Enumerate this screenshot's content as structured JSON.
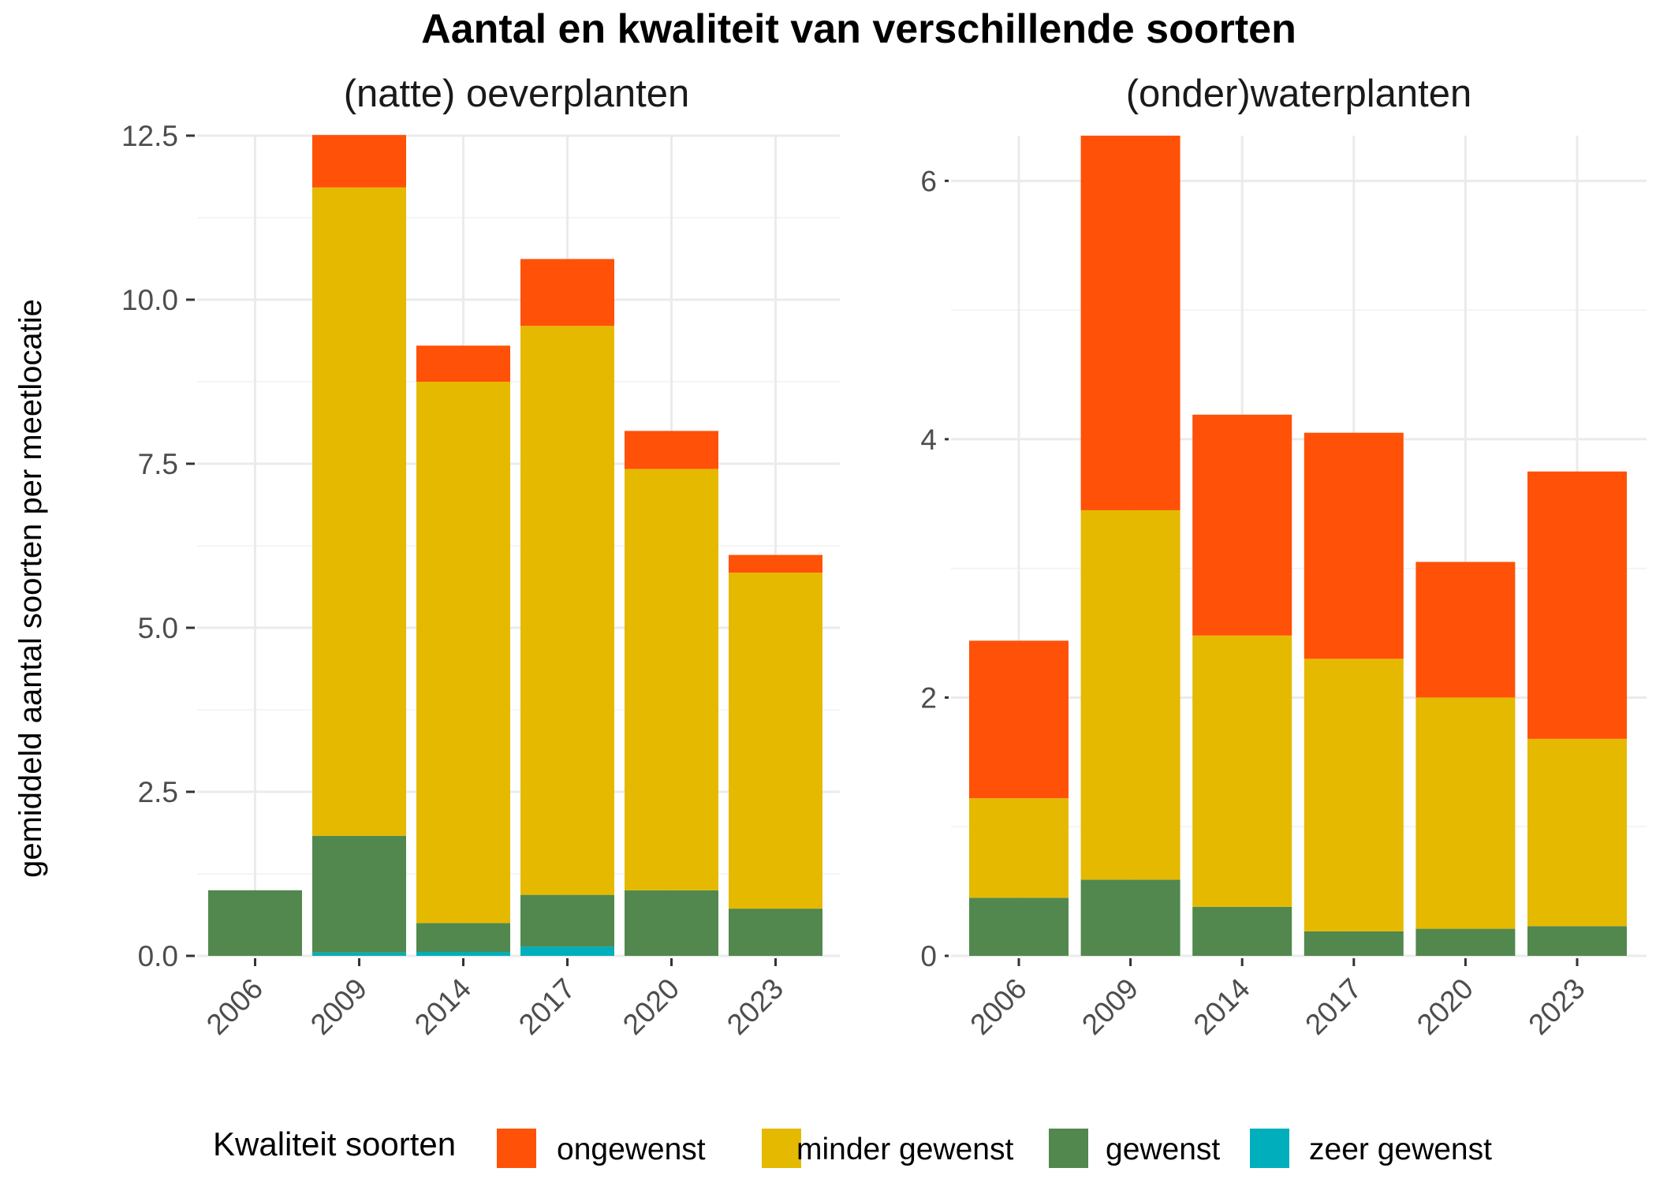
{
  "chart_data": {
    "type": "bar",
    "stacked": true,
    "title": "Aantal en kwaliteit van verschillende soorten",
    "ylabel": "gemiddeld aantal soorten per meetlocatie",
    "legend": {
      "title": "Kwaliteit soorten",
      "position": "bottom",
      "entries": [
        {
          "label": "ongewenst",
          "color": "#FF5108"
        },
        {
          "label": "minder gewenst",
          "color": "#E5B900"
        },
        {
          "label": "gewenst",
          "color": "#52884E"
        },
        {
          "label": "zeer gewenst",
          "color": "#00AFBB"
        }
      ]
    },
    "panels": [
      {
        "title": "(natte) oeverplanten",
        "categories": [
          "2006",
          "2009",
          "2014",
          "2017",
          "2020",
          "2023"
        ],
        "ylim": [
          0,
          12.5
        ],
        "yticks": [
          0,
          2.5,
          5,
          7.5,
          10,
          12.5
        ],
        "ytick_labels": [
          "0.0",
          "2.5",
          "5.0",
          "7.5",
          "10.0",
          "12.5"
        ],
        "grid": true,
        "series": [
          {
            "name": "zeer gewenst",
            "color": "#00AFBB",
            "values": [
              0,
              0.05,
              0.06,
              0.14,
              0,
              0
            ]
          },
          {
            "name": "gewenst",
            "color": "#52884E",
            "values": [
              1.0,
              1.78,
              0.44,
              0.79,
              1.0,
              0.72
            ]
          },
          {
            "name": "minder gewenst",
            "color": "#E5B900",
            "values": [
              0,
              9.88,
              8.25,
              8.67,
              6.42,
              5.12
            ]
          },
          {
            "name": "ongewenst",
            "color": "#FF5108",
            "values": [
              0,
              0.8,
              0.55,
              1.02,
              0.58,
              0.27
            ]
          }
        ]
      },
      {
        "title": "(onder)waterplanten",
        "categories": [
          "2006",
          "2009",
          "2014",
          "2017",
          "2020",
          "2023"
        ],
        "ylim": [
          0,
          6.35
        ],
        "yticks": [
          0,
          2,
          4,
          6
        ],
        "ytick_labels": [
          "0",
          "2",
          "4",
          "6"
        ],
        "grid": true,
        "series": [
          {
            "name": "zeer gewenst",
            "color": "#00AFBB",
            "values": [
              0,
              0,
              0,
              0,
              0,
              0
            ]
          },
          {
            "name": "gewenst",
            "color": "#52884E",
            "values": [
              0.45,
              0.59,
              0.38,
              0.19,
              0.21,
              0.23
            ]
          },
          {
            "name": "minder gewenst",
            "color": "#E5B900",
            "values": [
              0.77,
              2.86,
              2.1,
              2.11,
              1.79,
              1.45
            ]
          },
          {
            "name": "ongewenst",
            "color": "#FF5108",
            "values": [
              1.22,
              2.9,
              1.71,
              1.75,
              1.05,
              2.07
            ]
          }
        ]
      }
    ]
  }
}
